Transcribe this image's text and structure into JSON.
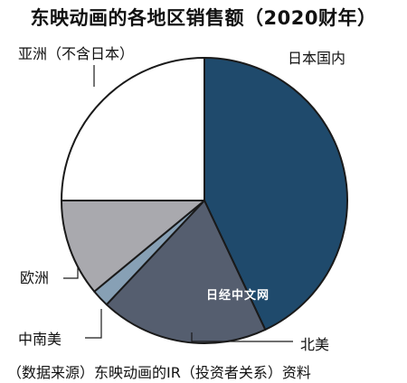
{
  "chart_data": {
    "type": "pie",
    "title": "东映动画的各地区销售额（2020财年）",
    "categories": [
      "日本国内",
      "北美",
      "中南美",
      "欧洲",
      "亚洲（不含日本）"
    ],
    "values": [
      43,
      19,
      2,
      11,
      25
    ],
    "colors": [
      "#1f4a6c",
      "#555e6f",
      "#87a0b5",
      "#a9a9ae",
      "#ffffff"
    ],
    "start_angle_deg": 0,
    "direction": "clockwise-from-top"
  },
  "source": "（数据来源）东映动画的IR（投资者关系）资料",
  "watermark": "日经中文网"
}
